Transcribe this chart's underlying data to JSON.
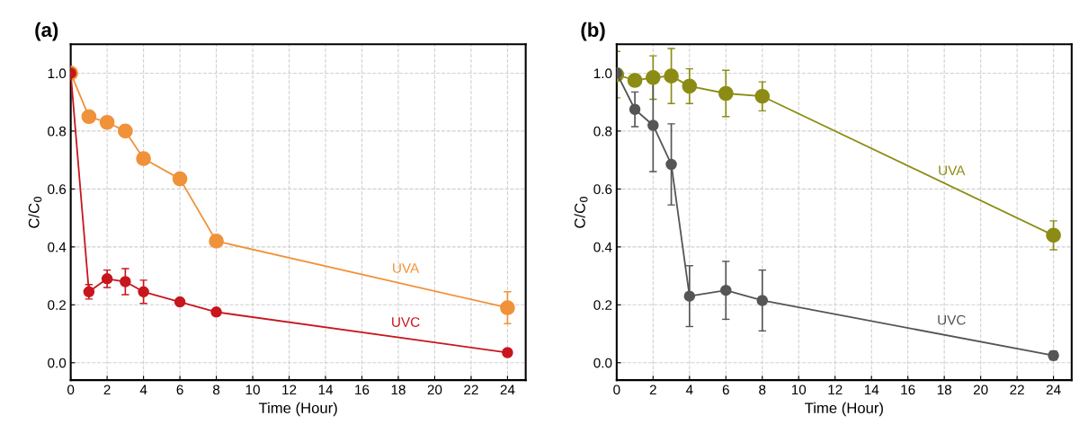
{
  "chart_data": [
    {
      "type": "line",
      "title": "(a)",
      "xlabel": "Time (Hour)",
      "ylabel": "C/C$_{0}$",
      "x": [
        0,
        1,
        2,
        3,
        4,
        6,
        8,
        24
      ],
      "series": [
        {
          "name": "UVA",
          "color": "#f0923a",
          "values": [
            1.0,
            0.85,
            0.83,
            0.8,
            0.705,
            0.635,
            0.42,
            0.19
          ],
          "errors": [
            null,
            0.01,
            0.015,
            0.02,
            0.015,
            0.01,
            0.01,
            0.055
          ]
        },
        {
          "name": "UVC",
          "color": "#c8161d",
          "values": [
            1.0,
            0.245,
            0.29,
            0.28,
            0.245,
            0.21,
            0.175,
            0.035
          ],
          "errors": [
            null,
            0.025,
            0.03,
            0.045,
            0.04,
            null,
            null,
            null
          ]
        }
      ],
      "xlim": [
        0,
        25
      ],
      "xticks": [
        0,
        2,
        4,
        6,
        8,
        10,
        12,
        14,
        16,
        18,
        20,
        22,
        24
      ],
      "ylim": [
        -0.06,
        1.1
      ],
      "yticks": [
        {
          "value": 0,
          "label": "0.0"
        },
        {
          "value": 0.2,
          "label": "0.2"
        },
        {
          "value": 0.4,
          "label": "0.4"
        },
        {
          "value": 0.6,
          "label": "0.6"
        },
        {
          "value": 0.8,
          "label": "0.8"
        },
        {
          "value": 1.0,
          "label": "1.0"
        }
      ],
      "grid": true,
      "marker": "circle",
      "line_style": "solid",
      "legend": false
    },
    {
      "type": "line",
      "title": "(b)",
      "xlabel": "Time (Hour)",
      "ylabel": "C/C$_{0}$",
      "x": [
        0,
        1,
        2,
        3,
        4,
        6,
        8,
        24
      ],
      "series": [
        {
          "name": "UVA",
          "color": "#8c8c14",
          "values": [
            0.995,
            0.975,
            0.985,
            0.99,
            0.955,
            0.93,
            0.92,
            0.44
          ],
          "errors": [
            0.08,
            0.02,
            0.075,
            0.095,
            0.06,
            0.08,
            0.05,
            0.05
          ]
        },
        {
          "name": "UVC",
          "color": "#555555",
          "values": [
            1.0,
            0.875,
            0.82,
            0.685,
            0.23,
            0.25,
            0.215,
            0.025
          ],
          "errors": [
            null,
            0.06,
            0.16,
            0.14,
            0.105,
            0.1,
            0.105,
            0.015
          ]
        }
      ],
      "xlim": [
        0,
        25
      ],
      "xticks": [
        0,
        2,
        4,
        6,
        8,
        10,
        12,
        14,
        16,
        18,
        20,
        22,
        24
      ],
      "ylim": [
        -0.06,
        1.1
      ],
      "yticks": [
        {
          "value": 0,
          "label": "0.0"
        },
        {
          "value": 0.2,
          "label": "0.2"
        },
        {
          "value": 0.4,
          "label": "0.4"
        },
        {
          "value": 0.6,
          "label": "0.6"
        },
        {
          "value": 0.8,
          "label": "0.8"
        },
        {
          "value": 1.0,
          "label": "1.0"
        }
      ],
      "grid": true,
      "marker": "circle",
      "line_style": "solid",
      "legend": false
    }
  ]
}
